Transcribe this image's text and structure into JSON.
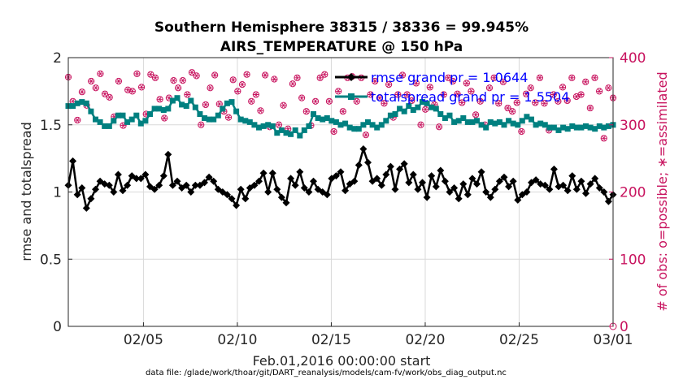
{
  "chart_data": {
    "type": "line",
    "title": "Southern Hemisphere 38315 / 38336 = 99.945%",
    "subtitle": "AIRS_TEMPERATURE @ 150 hPa",
    "xlabel": "Feb.01,2016 00:00:00 start",
    "ylabel": "rmse and totalspread",
    "ylabel_right": "# of obs: o=possible; ∗=assimilated",
    "footer": "data file: /glade/work/thoar/git/DART_reanalysis/models/cam-fv/work/obs_diag_output.nc",
    "xlim": [
      1,
      30
    ],
    "ylim": [
      0,
      2
    ],
    "ylim_right": [
      0,
      400
    ],
    "x_ticks": [
      {
        "x": 5,
        "label": "02/05"
      },
      {
        "x": 10,
        "label": "02/10"
      },
      {
        "x": 15,
        "label": "02/15"
      },
      {
        "x": 20,
        "label": "02/20"
      },
      {
        "x": 25,
        "label": "02/25"
      },
      {
        "x": 30,
        "label": "03/01"
      }
    ],
    "y_ticks": [
      "0",
      "0.5",
      "1",
      "1.5",
      "2"
    ],
    "y_ticks_right": [
      "0",
      "100",
      "200",
      "300",
      "400"
    ],
    "grid": true,
    "legend_position": "top-right",
    "colors": {
      "rmse": "#000000",
      "spread": "#008080",
      "obs": "#c8145f",
      "legend_text": "#0000ff"
    },
    "series": [
      {
        "name": "rmse grand pr = 1.0644",
        "axis": "left",
        "values": [
          1.05,
          1.23,
          0.98,
          1.03,
          0.88,
          0.95,
          1.02,
          1.08,
          1.06,
          1.05,
          1.0,
          1.13,
          1.01,
          1.05,
          1.12,
          1.1,
          1.1,
          1.13,
          1.04,
          1.02,
          1.05,
          1.12,
          1.28,
          1.05,
          1.08,
          1.03,
          1.05,
          1.0,
          1.05,
          1.05,
          1.07,
          1.11,
          1.08,
          1.02,
          1.0,
          0.98,
          0.95,
          0.9,
          1.02,
          0.95,
          1.03,
          1.05,
          1.08,
          1.14,
          1.0,
          1.14,
          1.02,
          0.96,
          0.92,
          1.1,
          1.05,
          1.15,
          1.03,
          1.0,
          1.08,
          1.02,
          1.0,
          0.98,
          1.1,
          1.12,
          1.15,
          1.01,
          1.06,
          1.08,
          1.2,
          1.32,
          1.22,
          1.08,
          1.1,
          1.05,
          1.13,
          1.19,
          1.02,
          1.17,
          1.21,
          1.07,
          1.13,
          1.02,
          1.07,
          0.96,
          1.12,
          1.04,
          1.16,
          1.08,
          1.0,
          1.03,
          0.95,
          1.06,
          0.98,
          1.1,
          1.06,
          1.15,
          1.0,
          0.96,
          1.02,
          1.08,
          1.11,
          1.04,
          1.08,
          0.94,
          0.98,
          1.0,
          1.07,
          1.09,
          1.06,
          1.05,
          1.02,
          1.17,
          1.04,
          1.05,
          1.01,
          1.12,
          1.02,
          1.08,
          0.99,
          1.06,
          1.1,
          1.03,
          1.0,
          0.93,
          0.98
        ]
      },
      {
        "name": "totalspread grand pr = 1.5504",
        "axis": "left",
        "values": [
          1.64,
          1.64,
          1.66,
          1.67,
          1.66,
          1.6,
          1.54,
          1.52,
          1.49,
          1.49,
          1.53,
          1.57,
          1.57,
          1.52,
          1.54,
          1.57,
          1.51,
          1.53,
          1.58,
          1.62,
          1.62,
          1.61,
          1.62,
          1.68,
          1.7,
          1.65,
          1.64,
          1.68,
          1.63,
          1.58,
          1.55,
          1.54,
          1.54,
          1.57,
          1.62,
          1.66,
          1.67,
          1.6,
          1.54,
          1.53,
          1.52,
          1.5,
          1.48,
          1.49,
          1.5,
          1.49,
          1.44,
          1.46,
          1.44,
          1.43,
          1.46,
          1.42,
          1.46,
          1.49,
          1.58,
          1.55,
          1.54,
          1.55,
          1.53,
          1.52,
          1.5,
          1.51,
          1.48,
          1.47,
          1.47,
          1.5,
          1.52,
          1.5,
          1.48,
          1.5,
          1.53,
          1.57,
          1.58,
          1.62,
          1.6,
          1.64,
          1.61,
          1.63,
          1.67,
          1.66,
          1.63,
          1.62,
          1.58,
          1.55,
          1.57,
          1.52,
          1.53,
          1.55,
          1.52,
          1.52,
          1.53,
          1.5,
          1.48,
          1.52,
          1.51,
          1.52,
          1.5,
          1.53,
          1.51,
          1.5,
          1.53,
          1.56,
          1.54,
          1.5,
          1.51,
          1.5,
          1.48,
          1.48,
          1.46,
          1.48,
          1.47,
          1.49,
          1.48,
          1.48,
          1.49,
          1.48,
          1.47,
          1.49,
          1.48,
          1.49,
          1.5
        ]
      },
      {
        "name": "obs possible/assimilated",
        "axis": "right",
        "marker": "o*",
        "values": [
          371,
          335,
          307,
          349,
          329,
          365,
          355,
          376,
          346,
          341,
          312,
          365,
          299,
          352,
          350,
          376,
          356,
          316,
          375,
          370,
          338,
          310,
          340,
          366,
          355,
          366,
          345,
          378,
          373,
          300,
          330,
          355,
          374,
          331,
          320,
          311,
          367,
          350,
          360,
          375,
          335,
          345,
          321,
          374,
          297,
          368,
          300,
          329,
          294,
          361,
          370,
          340,
          320,
          299,
          335,
          370,
          375,
          335,
          290,
          350,
          320,
          370,
          372,
          335,
          370,
          285,
          345,
          365,
          340,
          332,
          360,
          311,
          345,
          374,
          345,
          336,
          362,
          300,
          323,
          356,
          330,
          297,
          345,
          370,
          365,
          346,
          333,
          362,
          350,
          315,
          335,
          300,
          355,
          370,
          332,
          364,
          325,
          320,
          333,
          290,
          346,
          355,
          333,
          370,
          332,
          292,
          345,
          335,
          356,
          336,
          370,
          342,
          345,
          364,
          325,
          370,
          350,
          280,
          355,
          340
        ]
      }
    ]
  }
}
